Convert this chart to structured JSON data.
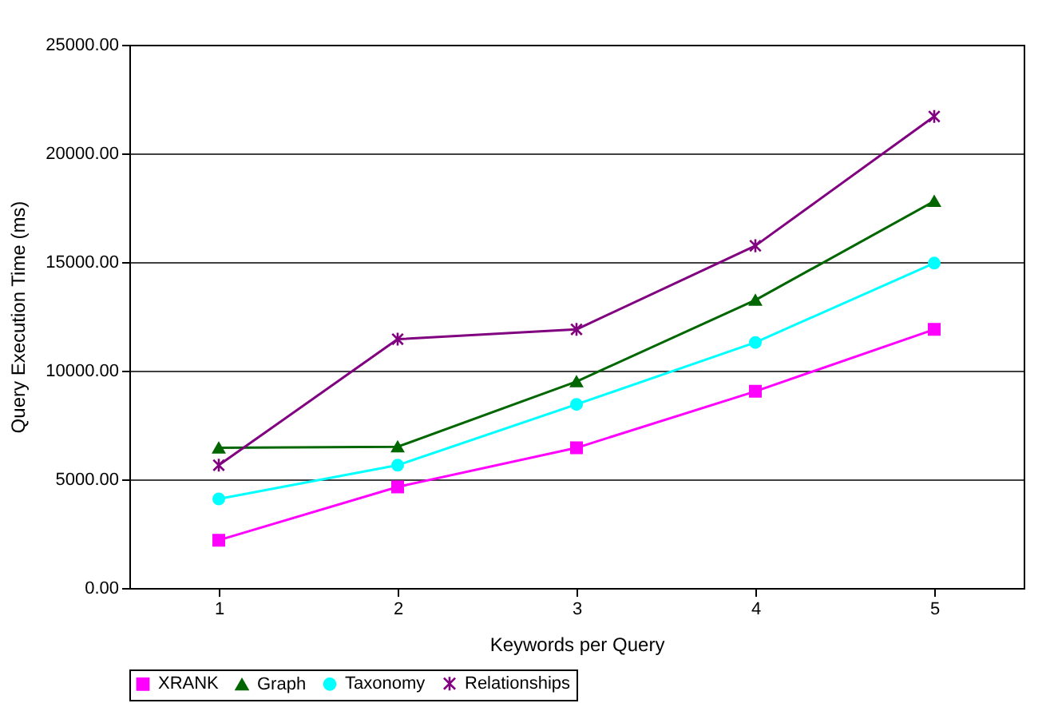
{
  "chart_data": {
    "type": "line",
    "xlabel": "Keywords per Query",
    "ylabel": "Query Execution Time (ms)",
    "categories": [
      "1",
      "2",
      "3",
      "4",
      "5"
    ],
    "series": [
      {
        "name": "XRANK",
        "color": "#ff00ff",
        "marker": "square",
        "values": [
          2200,
          4650,
          6450,
          9050,
          11900
        ]
      },
      {
        "name": "Graph",
        "color": "#006600",
        "marker": "triangle",
        "values": [
          6450,
          6500,
          9500,
          13250,
          17800
        ]
      },
      {
        "name": "Taxonomy",
        "color": "#00ffff",
        "marker": "circle",
        "values": [
          4100,
          5650,
          8450,
          11300,
          14950
        ]
      },
      {
        "name": "Relationships",
        "color": "#800080",
        "marker": "cross",
        "values": [
          5650,
          11450,
          11900,
          15750,
          21700
        ]
      }
    ],
    "ylim": [
      0,
      25000
    ],
    "yticks": [
      {
        "value": 0,
        "label": "0.00"
      },
      {
        "value": 5000,
        "label": "5000.00"
      },
      {
        "value": 10000,
        "label": "10000.00"
      },
      {
        "value": 15000,
        "label": "15000.00"
      },
      {
        "value": 20000,
        "label": "20000.00"
      },
      {
        "value": 25000,
        "label": "25000.00"
      }
    ],
    "grid": "y",
    "legend": "bottom"
  }
}
